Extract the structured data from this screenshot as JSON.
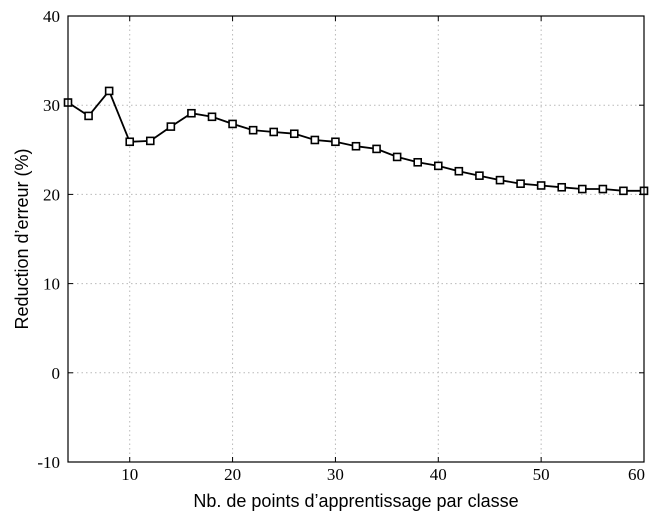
{
  "chart_data": {
    "type": "line",
    "title": "",
    "xlabel": "Nb. de points d’apprentissage par classe",
    "ylabel": "Reduction d’erreur (%)",
    "xlim": [
      4,
      60
    ],
    "ylim": [
      -10,
      40
    ],
    "xticks": [
      10,
      20,
      30,
      40,
      50,
      60
    ],
    "yticks": [
      -10,
      0,
      10,
      20,
      30,
      40
    ],
    "grid": true,
    "marker": "square",
    "series": [
      {
        "x": [
          4,
          6,
          8,
          10,
          12,
          14,
          16,
          18,
          20,
          22,
          24,
          26,
          28,
          30,
          32,
          34,
          36,
          38,
          40,
          42,
          44,
          46,
          48,
          50,
          52,
          54,
          56,
          58,
          60
        ],
        "y": [
          30.3,
          28.8,
          31.6,
          25.9,
          26.0,
          27.6,
          29.1,
          28.7,
          27.9,
          27.2,
          27.0,
          26.8,
          26.1,
          25.9,
          25.4,
          25.1,
          24.2,
          23.6,
          23.2,
          22.6,
          22.1,
          21.6,
          21.2,
          21.0,
          20.8,
          20.6,
          20.6,
          20.4,
          20.4
        ]
      }
    ]
  }
}
